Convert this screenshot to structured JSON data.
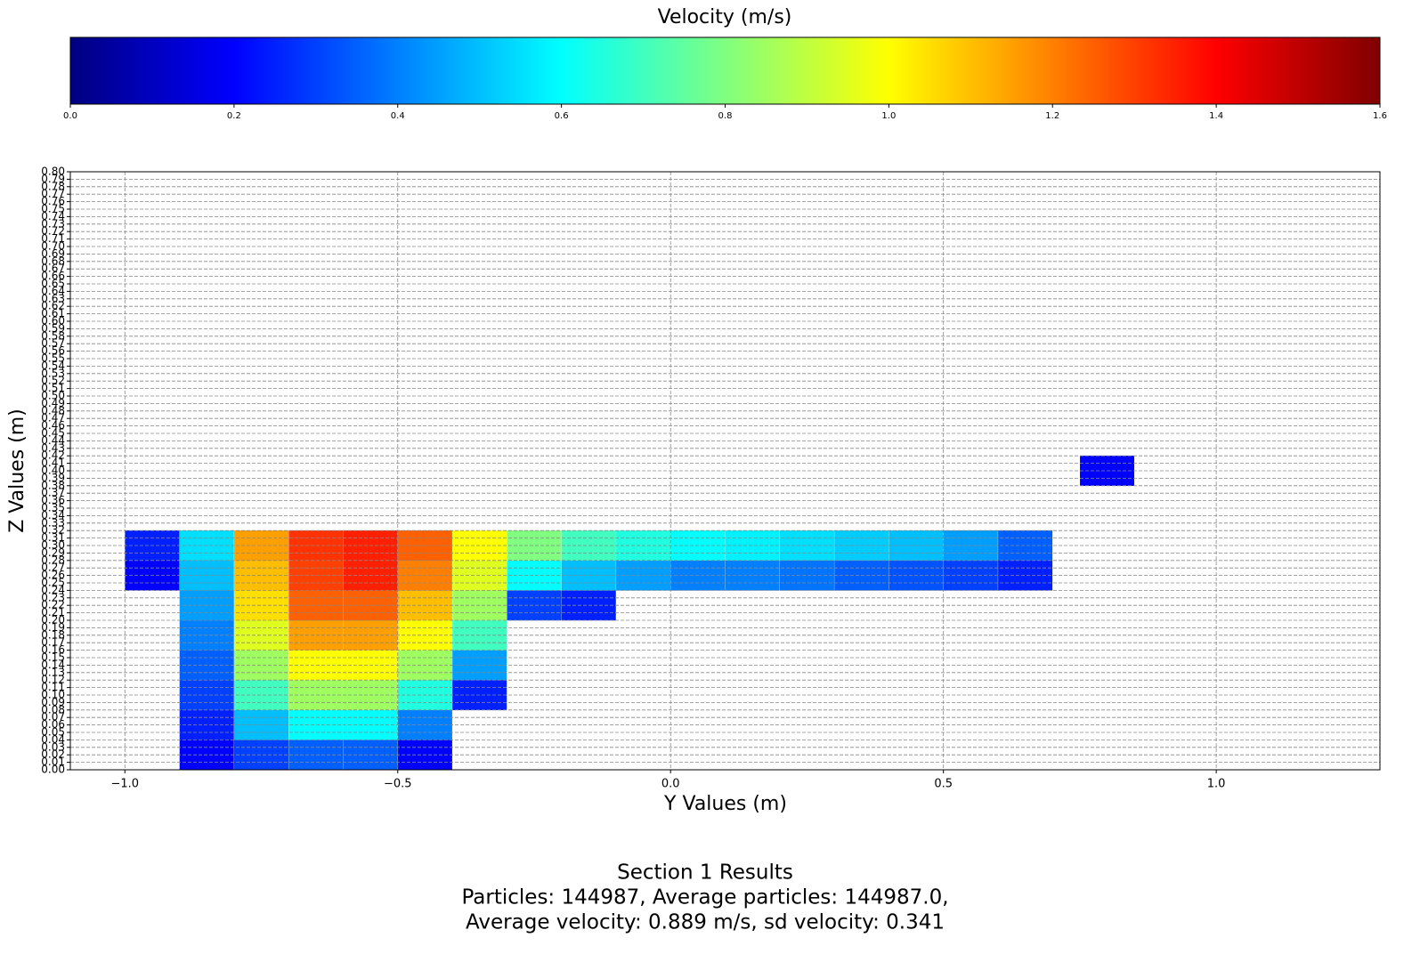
{
  "chart_data": {
    "type": "scatter",
    "colorbar_label": "Velocity (m/s)",
    "colormap": "jet",
    "clim": [
      0,
      1.6
    ],
    "cticks": [
      {
        "value": 0,
        "label": "0.0"
      },
      0.2,
      0.4,
      0.6,
      0.8,
      {
        "value": 1,
        "label": "1.0"
      },
      1.2,
      1.4,
      1.6
    ],
    "x_label": "Y Values (m)",
    "y_label": "Z Values (m)",
    "xlim": [
      -1.1,
      1.3
    ],
    "ylim": [
      0,
      0.8
    ],
    "xticks": [
      {
        "value": -1,
        "label": "−1.0"
      },
      {
        "value": -0.5,
        "label": "−0.5"
      },
      {
        "value": 0,
        "label": "0.0"
      },
      0.5,
      {
        "value": 1,
        "label": "1.0"
      }
    ],
    "yticks": [
      {
        "value": 0,
        "label": "0.00"
      },
      {
        "value": 0.01,
        "label": "0.01"
      },
      {
        "value": 0.02,
        "label": "0.02"
      },
      {
        "value": 0.03,
        "label": "0.03"
      },
      {
        "value": 0.04,
        "label": "0.04"
      },
      {
        "value": 0.05,
        "label": "0.05"
      },
      {
        "value": 0.06,
        "label": "0.06"
      },
      {
        "value": 0.07,
        "label": "0.07"
      },
      {
        "value": 0.08,
        "label": "0.08"
      },
      {
        "value": 0.09,
        "label": "0.09"
      },
      {
        "value": 0.1,
        "label": "0.10"
      },
      {
        "value": 0.11,
        "label": "0.11"
      },
      {
        "value": 0.12,
        "label": "0.12"
      },
      {
        "value": 0.13,
        "label": "0.13"
      },
      {
        "value": 0.14,
        "label": "0.14"
      },
      {
        "value": 0.15,
        "label": "0.15"
      },
      {
        "value": 0.16,
        "label": "0.16"
      },
      {
        "value": 0.17,
        "label": "0.17"
      },
      {
        "value": 0.18,
        "label": "0.18"
      },
      {
        "value": 0.19,
        "label": "0.19"
      },
      {
        "value": 0.2,
        "label": "0.20"
      },
      {
        "value": 0.21,
        "label": "0.21"
      },
      {
        "value": 0.22,
        "label": "0.22"
      },
      {
        "value": 0.23,
        "label": "0.23"
      },
      {
        "value": 0.24,
        "label": "0.24"
      },
      {
        "value": 0.25,
        "label": "0.25"
      },
      {
        "value": 0.26,
        "label": "0.26"
      },
      {
        "value": 0.27,
        "label": "0.27"
      },
      {
        "value": 0.28,
        "label": "0.28"
      },
      {
        "value": 0.29,
        "label": "0.29"
      },
      {
        "value": 0.3,
        "label": "0.30"
      },
      {
        "value": 0.31,
        "label": "0.31"
      },
      {
        "value": 0.32,
        "label": "0.32"
      },
      {
        "value": 0.33,
        "label": "0.33"
      },
      {
        "value": 0.34,
        "label": "0.34"
      },
      {
        "value": 0.35,
        "label": "0.35"
      },
      {
        "value": 0.36,
        "label": "0.36"
      },
      {
        "value": 0.37,
        "label": "0.37"
      },
      {
        "value": 0.38,
        "label": "0.38"
      },
      {
        "value": 0.39,
        "label": "0.39"
      },
      {
        "value": 0.4,
        "label": "0.40"
      },
      {
        "value": 0.41,
        "label": "0.41"
      },
      {
        "value": 0.42,
        "label": "0.42"
      },
      {
        "value": 0.43,
        "label": "0.43"
      },
      {
        "value": 0.44,
        "label": "0.44"
      },
      {
        "value": 0.45,
        "label": "0.45"
      },
      {
        "value": 0.46,
        "label": "0.46"
      },
      {
        "value": 0.47,
        "label": "0.47"
      },
      {
        "value": 0.48,
        "label": "0.48"
      },
      {
        "value": 0.49,
        "label": "0.49"
      },
      {
        "value": 0.5,
        "label": "0.50"
      },
      {
        "value": 0.51,
        "label": "0.51"
      },
      {
        "value": 0.52,
        "label": "0.52"
      },
      {
        "value": 0.53,
        "label": "0.53"
      },
      {
        "value": 0.54,
        "label": "0.54"
      },
      {
        "value": 0.55,
        "label": "0.55"
      },
      {
        "value": 0.56,
        "label": "0.56"
      },
      {
        "value": 0.57,
        "label": "0.57"
      },
      {
        "value": 0.58,
        "label": "0.58"
      },
      {
        "value": 0.59,
        "label": "0.59"
      },
      {
        "value": 0.6,
        "label": "0.60"
      },
      {
        "value": 0.61,
        "label": "0.61"
      },
      {
        "value": 0.62,
        "label": "0.62"
      },
      {
        "value": 0.63,
        "label": "0.63"
      },
      {
        "value": 0.64,
        "label": "0.64"
      },
      {
        "value": 0.65,
        "label": "0.65"
      },
      {
        "value": 0.66,
        "label": "0.66"
      },
      {
        "value": 0.67,
        "label": "0.67"
      },
      {
        "value": 0.68,
        "label": "0.68"
      },
      {
        "value": 0.69,
        "label": "0.69"
      },
      {
        "value": 0.7,
        "label": "0.70"
      },
      {
        "value": 0.71,
        "label": "0.71"
      },
      {
        "value": 0.72,
        "label": "0.72"
      },
      {
        "value": 0.73,
        "label": "0.73"
      },
      {
        "value": 0.74,
        "label": "0.74"
      },
      {
        "value": 0.75,
        "label": "0.75"
      },
      {
        "value": 0.76,
        "label": "0.76"
      },
      {
        "value": 0.77,
        "label": "0.77"
      },
      {
        "value": 0.78,
        "label": "0.78"
      },
      {
        "value": 0.79,
        "label": "0.79"
      },
      {
        "value": 0.8,
        "label": "0.80"
      }
    ],
    "grid": true,
    "x": [
      -0.95,
      -0.95,
      -0.85,
      -0.85,
      -0.85,
      -0.85,
      -0.85,
      -0.85,
      -0.85,
      -0.85,
      -0.75,
      -0.75,
      -0.75,
      -0.75,
      -0.75,
      -0.75,
      -0.75,
      -0.75,
      -0.65,
      -0.65,
      -0.65,
      -0.65,
      -0.65,
      -0.65,
      -0.65,
      -0.65,
      -0.55,
      -0.55,
      -0.55,
      -0.55,
      -0.55,
      -0.55,
      -0.55,
      -0.55,
      -0.45,
      -0.45,
      -0.45,
      -0.45,
      -0.45,
      -0.45,
      -0.45,
      -0.45,
      -0.35,
      -0.35,
      -0.35,
      -0.35,
      -0.35,
      -0.35,
      -0.25,
      -0.25,
      -0.25,
      -0.15,
      -0.15,
      -0.15,
      -0.05,
      -0.05,
      0.05,
      0.05,
      0.15,
      0.15,
      0.25,
      0.25,
      0.35,
      0.35,
      0.45,
      0.45,
      0.55,
      0.55,
      0.65,
      0.65,
      0.8
    ],
    "y": [
      0.26,
      0.3,
      0.02,
      0.06,
      0.1,
      0.14,
      0.18,
      0.22,
      0.26,
      0.3,
      0.02,
      0.06,
      0.1,
      0.14,
      0.18,
      0.22,
      0.26,
      0.3,
      0.02,
      0.06,
      0.1,
      0.14,
      0.18,
      0.22,
      0.26,
      0.3,
      0.02,
      0.06,
      0.1,
      0.14,
      0.18,
      0.22,
      0.26,
      0.3,
      0.02,
      0.06,
      0.1,
      0.14,
      0.18,
      0.22,
      0.26,
      0.3,
      0.1,
      0.14,
      0.18,
      0.22,
      0.26,
      0.3,
      0.22,
      0.26,
      0.3,
      0.22,
      0.26,
      0.3,
      0.26,
      0.3,
      0.26,
      0.3,
      0.26,
      0.3,
      0.26,
      0.3,
      0.26,
      0.3,
      0.26,
      0.3,
      0.26,
      0.3,
      0.26,
      0.3,
      0.4
    ],
    "velocity": [
      0.2,
      0.25,
      0.2,
      0.25,
      0.3,
      0.35,
      0.4,
      0.45,
      0.5,
      0.55,
      0.3,
      0.5,
      0.7,
      0.85,
      0.95,
      1.05,
      1.1,
      1.15,
      0.35,
      0.6,
      0.85,
      1.0,
      1.15,
      1.25,
      1.3,
      1.32,
      0.35,
      0.6,
      0.85,
      1.0,
      1.15,
      1.25,
      1.35,
      1.35,
      0.2,
      0.4,
      0.65,
      0.85,
      1.0,
      1.1,
      1.2,
      1.25,
      0.25,
      0.45,
      0.7,
      0.85,
      0.95,
      1.0,
      0.3,
      0.6,
      0.8,
      0.25,
      0.5,
      0.7,
      0.45,
      0.65,
      0.4,
      0.6,
      0.4,
      0.58,
      0.38,
      0.55,
      0.35,
      0.52,
      0.33,
      0.5,
      0.3,
      0.45,
      0.25,
      0.35,
      0.2
    ],
    "footer": [
      "Section 1 Results",
      "Particles: 144987, Average particles: 144987.0,",
      "Average velocity: 0.889 m/s, sd velocity: 0.341"
    ]
  }
}
